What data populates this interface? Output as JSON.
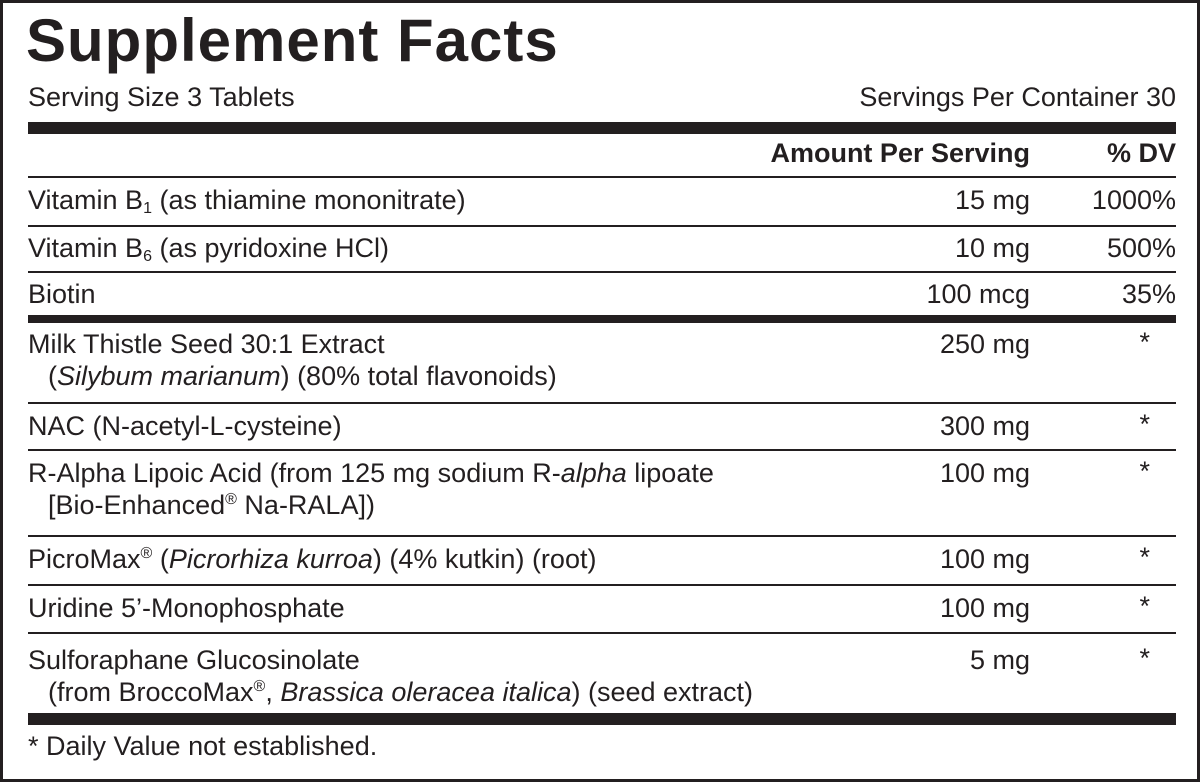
{
  "title": "Supplement Facts",
  "serving_size": "Serving Size 3 Tablets",
  "servings_per_container": "Servings Per Container 30",
  "header": {
    "amount": "Amount Per Serving",
    "dv": "% DV"
  },
  "rows": [
    {
      "name": [
        "Vitamin B",
        "1",
        " (as thiamine mononitrate)"
      ],
      "amount": "15 mg",
      "dv": "1000%"
    },
    {
      "name": [
        "Vitamin B",
        "6",
        " (as pyridoxine HCl)"
      ],
      "amount": "10 mg",
      "dv": "500%"
    },
    {
      "name": [
        "Biotin"
      ],
      "amount": "100 mcg",
      "dv": "35%"
    },
    {
      "name": [
        "Milk Thistle Seed 30:1 Extract",
        "(",
        "Silybum marianum",
        ") (80% total flavonoids)"
      ],
      "amount": "250 mg",
      "dv": "*"
    },
    {
      "name": [
        "NAC (N-acetyl-L-cysteine)"
      ],
      "amount": "300 mg",
      "dv": "*"
    },
    {
      "name": [
        "R-Alpha Lipoic Acid (from 125 mg sodium R-",
        "alpha",
        " lipoate",
        "[Bio-Enhanced",
        "®",
        " Na-RALA])"
      ],
      "amount": "100 mg",
      "dv": "*"
    },
    {
      "name": [
        "PicroMax",
        "®",
        " (",
        "Picrorhiza kurroa",
        ") (4% kutkin) (root)"
      ],
      "amount": "100 mg",
      "dv": "*"
    },
    {
      "name": [
        "Uridine 5’-Monophosphate"
      ],
      "amount": "100 mg",
      "dv": "*"
    },
    {
      "name": [
        "Sulforaphane Glucosinolate",
        "(from BroccoMax",
        "®",
        ", ",
        "Brassica oleracea italica",
        ") (seed extract)"
      ],
      "amount": "5 mg",
      "dv": "*"
    }
  ],
  "footnote": "* Daily Value not established."
}
